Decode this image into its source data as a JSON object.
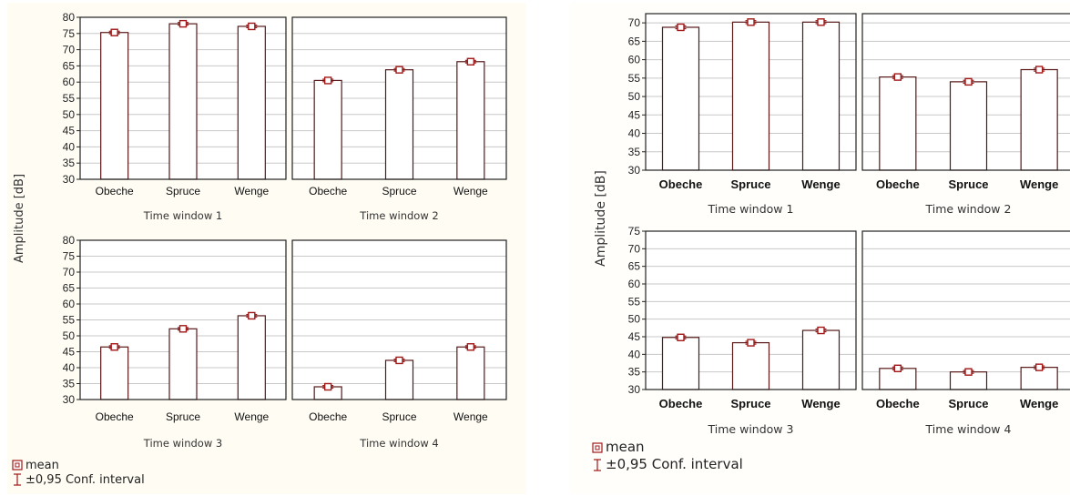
{
  "chart_data": [
    {
      "type": "bar",
      "ylabel": "Amplitude [dB]",
      "ylim": [
        30,
        80
      ],
      "yticks": [
        "30",
        "35",
        "40",
        "45",
        "50",
        "55",
        "60",
        "65",
        "70",
        "75",
        "80"
      ],
      "grid": true,
      "panels": [
        {
          "title": "Time window 1",
          "categories": [
            "Obeche",
            "Spruce",
            "Wenge"
          ],
          "values": [
            75.3,
            78.0,
            77.2
          ],
          "ci": [
            0.4,
            0.4,
            0.4
          ]
        },
        {
          "title": "Time window 2",
          "categories": [
            "Obeche",
            "Spruce",
            "Wenge"
          ],
          "values": [
            60.5,
            63.8,
            66.3
          ],
          "ci": [
            0.4,
            0.4,
            0.4
          ]
        },
        {
          "title": "Time window 3",
          "categories": [
            "Obeche",
            "Spruce",
            "Wenge"
          ],
          "values": [
            46.5,
            52.2,
            56.3
          ],
          "ci": [
            0.4,
            0.4,
            0.4
          ]
        },
        {
          "title": "Time window 4",
          "categories": [
            "Obeche",
            "Spruce",
            "Wenge"
          ],
          "values": [
            34.0,
            42.3,
            46.5
          ],
          "ci": [
            0.4,
            0.4,
            0.4
          ]
        }
      ],
      "legend": {
        "mean": "mean",
        "ci": "±0,95 Conf. interval",
        "position": "bottom-left"
      }
    },
    {
      "type": "bar",
      "ylabel": "Amplitude [dB]",
      "ylim": [
        30,
        75
      ],
      "yticks": [
        "30",
        "35",
        "40",
        "45",
        "50",
        "55",
        "60",
        "65",
        "70"
      ],
      "yticks_bottom": [
        "30",
        "35",
        "40",
        "45",
        "50",
        "55",
        "60",
        "65",
        "70",
        "75"
      ],
      "grid": true,
      "panels": [
        {
          "title": "Time window 1",
          "categories": [
            "Obeche",
            "Spruce",
            "Wenge"
          ],
          "values": [
            68.8,
            70.2,
            70.2
          ],
          "ci": [
            0.4,
            0.4,
            0.4
          ]
        },
        {
          "title": "Time window 2",
          "categories": [
            "Obeche",
            "Spruce",
            "Wenge"
          ],
          "values": [
            55.3,
            54.0,
            57.3
          ],
          "ci": [
            0.4,
            0.4,
            0.4
          ]
        },
        {
          "title": "Time window 3",
          "categories": [
            "Obeche",
            "Spruce",
            "Wenge"
          ],
          "values": [
            44.8,
            43.3,
            46.8
          ],
          "ci": [
            0.4,
            0.4,
            0.4
          ]
        },
        {
          "title": "Time window 4",
          "categories": [
            "Obeche",
            "Spruce",
            "Wenge"
          ],
          "values": [
            36.0,
            35.0,
            36.3
          ],
          "ci": [
            0.4,
            0.4,
            0.4
          ]
        }
      ],
      "legend": {
        "mean": "mean",
        "ci": "±0,95 Conf. interval",
        "position": "bottom-left"
      }
    }
  ],
  "colors": {
    "bar_fill": "#ffffff",
    "bar_stroke": "#5a1818",
    "marker": "#a01818",
    "grid": "#c8c8c8",
    "frame": "#222222"
  }
}
